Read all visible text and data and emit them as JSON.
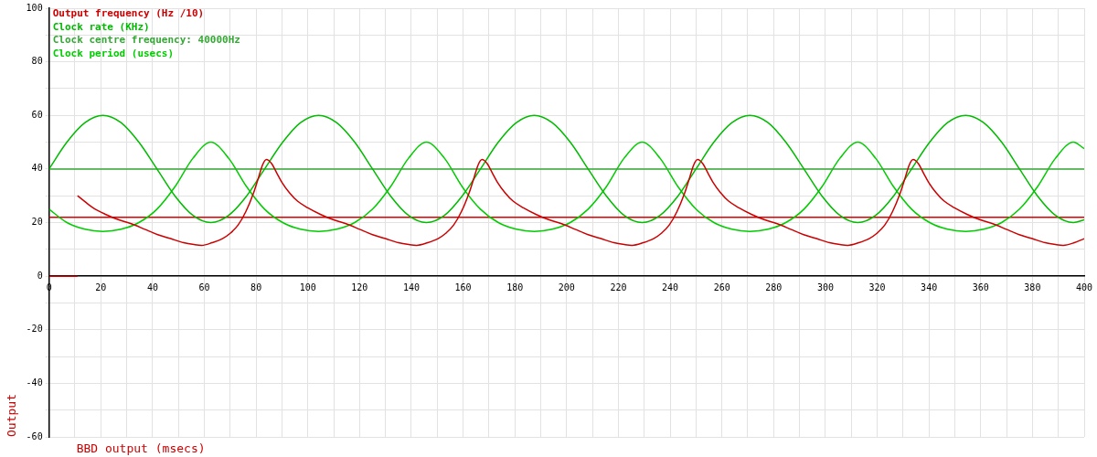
{
  "chart_data": {
    "type": "line",
    "xlabel": "BBD output (msecs)",
    "ylabel": "Output",
    "xlim": [
      0,
      400
    ],
    "ylim": [
      -60,
      100
    ],
    "xticks": [
      0,
      {
        "value": 10,
        "label": null
      },
      20,
      {
        "value": 30,
        "label": null
      },
      40,
      {
        "value": 50,
        "label": null
      },
      60,
      {
        "value": 70,
        "label": null
      },
      80,
      {
        "value": 90,
        "label": null
      },
      100,
      {
        "value": 110,
        "label": null
      },
      120,
      {
        "value": 130,
        "label": null
      },
      140,
      {
        "value": 150,
        "label": null
      },
      160,
      {
        "value": 170,
        "label": null
      },
      180,
      {
        "value": 190,
        "label": null
      },
      200,
      {
        "value": 210,
        "label": null
      },
      220,
      {
        "value": 230,
        "label": null
      },
      240,
      {
        "value": 250,
        "label": null
      },
      260,
      {
        "value": 270,
        "label": null
      },
      280,
      {
        "value": 290,
        "label": null
      },
      300,
      {
        "value": 310,
        "label": null
      },
      320,
      {
        "value": 330,
        "label": null
      },
      340,
      {
        "value": 350,
        "label": null
      },
      360,
      {
        "value": 370,
        "label": null
      },
      380,
      {
        "value": 390,
        "label": null
      },
      400
    ],
    "yticks": [
      -60,
      {
        "value": -50,
        "label": null
      },
      -40,
      {
        "value": -30,
        "label": null
      },
      -20,
      {
        "value": -10,
        "label": null
      },
      0,
      {
        "value": 10,
        "label": null
      },
      20,
      {
        "value": 30,
        "label": null
      },
      40,
      {
        "value": 50,
        "label": null
      },
      60,
      {
        "value": 70,
        "label": null
      },
      80,
      {
        "value": 90,
        "label": null
      },
      100
    ],
    "grid": true,
    "legend": "top left",
    "marker": "none",
    "line_style": "solid",
    "ref_lines": [
      {
        "axis": "y",
        "value": 22,
        "color": "#dd0000"
      }
    ],
    "series": [
      {
        "name": "Output frequency (Hz /10)",
        "color": "#cc0000",
        "x": [
          11,
          13,
          17,
          22,
          27,
          32,
          37,
          42,
          47,
          52,
          56,
          59,
          63,
          67,
          70,
          73,
          76,
          79,
          81,
          82.5,
          84,
          86,
          88,
          90,
          93,
          96,
          100,
          105,
          110,
          115,
          120,
          125,
          130,
          135,
          139,
          142,
          146.3,
          150.3,
          153.3,
          156.3,
          159.3,
          162.3,
          164.3,
          165.8,
          167.3,
          169.3,
          171.3,
          173.3,
          176.3,
          179.3,
          183.3,
          188.3,
          193.3,
          198.3,
          203.3,
          208.3,
          213.3,
          218.3,
          222.3,
          225.3,
          229.6,
          233.6,
          236.6,
          239.6,
          242.6,
          245.6,
          247.6,
          249.1,
          250.6,
          252.6,
          254.6,
          256.6,
          259.6,
          262.6,
          266.6,
          271.6,
          276.6,
          281.6,
          286.6,
          291.6,
          296.6,
          301.6,
          305.6,
          308.6,
          312.9,
          316.9,
          319.9,
          322.9,
          325.9,
          328.9,
          330.9,
          332.4,
          333.9,
          335.9,
          337.9,
          339.9,
          342.9,
          345.9,
          349.9,
          354.9,
          359.9,
          364.9,
          369.9,
          374.9,
          379.9,
          384.9,
          388.9,
          391.9,
          396.2,
          400
        ],
        "values": [
          30,
          28.5,
          25.5,
          23,
          21,
          19.5,
          17.5,
          15.5,
          14,
          12.5,
          11.8,
          11.5,
          12.5,
          14,
          16,
          19,
          24,
          31,
          37,
          41.5,
          43.5,
          42,
          38.5,
          35,
          31,
          28,
          25.5,
          23,
          21,
          19.5,
          17.5,
          15.5,
          14,
          12.5,
          11.8,
          11.5,
          12.5,
          14,
          16,
          19,
          24,
          31,
          37,
          41.5,
          43.5,
          42,
          38.5,
          35,
          31,
          28,
          25.5,
          23,
          21,
          19.5,
          17.5,
          15.5,
          14,
          12.5,
          11.8,
          11.5,
          12.5,
          14,
          16,
          19,
          24,
          31,
          37,
          41.5,
          43.5,
          42,
          38.5,
          35,
          31,
          28,
          25.5,
          23,
          21,
          19.5,
          17.5,
          15.5,
          14,
          12.5,
          11.8,
          11.5,
          12.5,
          14,
          16,
          19,
          24,
          31,
          37,
          41.5,
          43.5,
          42,
          38.5,
          35,
          31,
          28,
          25.5,
          23,
          21,
          19.5,
          17.5,
          15.5,
          14,
          12.5,
          11.8,
          11.5,
          12.5,
          14
        ]
      },
      {
        "color": "#cc0000",
        "x": [
          0,
          11
        ],
        "values": [
          0,
          0
        ]
      },
      {
        "name": "Clock rate (KHz)",
        "color": "#00bb00",
        "x": [
          0,
          6.9,
          13.9,
          20.8,
          27.8,
          34.7,
          41.7,
          48.6,
          55.6,
          62.5,
          69.4,
          76.4,
          83.3,
          90.3,
          97.2,
          104.2,
          111.1,
          118.1,
          125,
          131.9,
          138.9,
          145.8,
          152.8,
          159.7,
          166.7,
          173.6,
          180.6,
          187.5,
          194.4,
          201.4,
          208.3,
          215.3,
          222.2,
          229.2,
          236.1,
          243.1,
          250,
          256.9,
          263.9,
          270.8,
          277.8,
          284.7,
          291.7,
          298.6,
          305.6,
          312.5,
          319.4,
          326.4,
          333.3,
          340.3,
          347.2,
          354.2,
          361.1,
          368.1,
          375,
          381.9,
          388.9,
          395.8,
          400
        ],
        "values": [
          40,
          50,
          57.3,
          60,
          57.3,
          50,
          40,
          30,
          22.7,
          20,
          22.7,
          30,
          40,
          50,
          57.3,
          60,
          57.3,
          50,
          40,
          30,
          22.7,
          20,
          22.7,
          30,
          40,
          50,
          57.3,
          60,
          57.3,
          50,
          40,
          30,
          22.7,
          20,
          22.7,
          30,
          40,
          50,
          57.3,
          60,
          57.3,
          50,
          40,
          30,
          22.7,
          20,
          22.7,
          30,
          40,
          50,
          57.3,
          60,
          57.3,
          50,
          40,
          30,
          22.7,
          20,
          21
        ]
      },
      {
        "name": "Clock centre frequency: 40000Hz",
        "color": "#33aa33",
        "x": [
          0,
          400
        ],
        "values": [
          40,
          40
        ]
      },
      {
        "name": "Clock period (usecs)",
        "color": "#00cc00",
        "x": [
          0,
          6.9,
          13.9,
          20.8,
          27.8,
          34.7,
          41.7,
          48.6,
          55.6,
          62.5,
          69.4,
          76.4,
          83.3,
          90.3,
          97.2,
          104.2,
          111.1,
          118.1,
          125,
          131.9,
          138.9,
          145.8,
          152.8,
          159.7,
          166.7,
          173.6,
          180.6,
          187.5,
          194.4,
          201.4,
          208.3,
          215.3,
          222.2,
          229.2,
          236.1,
          243.1,
          250,
          256.9,
          263.9,
          270.8,
          277.8,
          284.7,
          291.7,
          298.6,
          305.6,
          312.5,
          319.4,
          326.4,
          333.3,
          340.3,
          347.2,
          354.2,
          361.1,
          368.1,
          375,
          381.9,
          388.9,
          395.8,
          400
        ],
        "values": [
          25,
          20,
          17.5,
          16.7,
          17.5,
          20,
          25,
          33.3,
          44,
          50,
          44,
          33.3,
          25,
          20,
          17.5,
          16.7,
          17.5,
          20,
          25,
          33.3,
          44,
          50,
          44,
          33.3,
          25,
          20,
          17.5,
          16.7,
          17.5,
          20,
          25,
          33.3,
          44,
          50,
          44,
          33.3,
          25,
          20,
          17.5,
          16.7,
          17.5,
          20,
          25,
          33.3,
          44,
          50,
          44,
          33.3,
          25,
          20,
          17.5,
          16.7,
          17.5,
          20,
          25,
          33.3,
          44,
          50,
          47.6
        ]
      }
    ]
  }
}
